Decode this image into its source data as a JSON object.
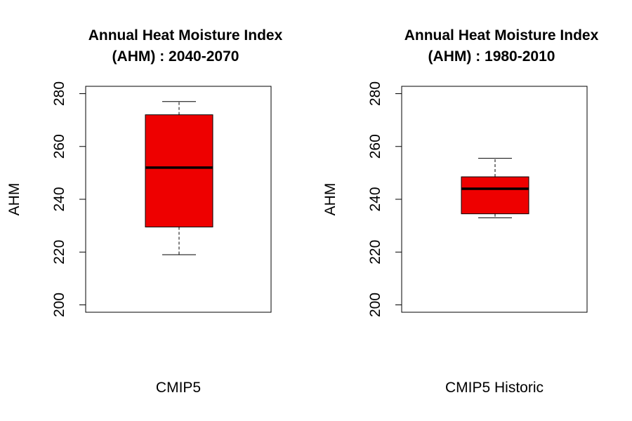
{
  "chart_data": [
    {
      "type": "boxplot",
      "title_line1": "Annual Heat Moisture Index",
      "title_line2": "(AHM) : 2040-2070",
      "xlabel": "CMIP5",
      "ylabel": "AHM",
      "ylim": [
        200,
        280
      ],
      "yticks": [
        "200",
        "220",
        "240",
        "260",
        "280"
      ],
      "grid": false,
      "box": {
        "whisker_low": 219,
        "q1": 229.5,
        "median": 252,
        "q3": 272,
        "whisker_high": 277
      },
      "fill_color": "#ee0000"
    },
    {
      "type": "boxplot",
      "title_line1": "Annual Heat Moisture Index",
      "title_line2": "(AHM) : 1980-2010",
      "xlabel": "CMIP5 Historic",
      "ylabel": "AHM",
      "ylim": [
        200,
        280
      ],
      "yticks": [
        "200",
        "220",
        "240",
        "260",
        "280"
      ],
      "grid": false,
      "box": {
        "whisker_low": 233,
        "q1": 234.5,
        "median": 244,
        "q3": 248.5,
        "whisker_high": 255.5
      },
      "fill_color": "#ee0000"
    }
  ]
}
